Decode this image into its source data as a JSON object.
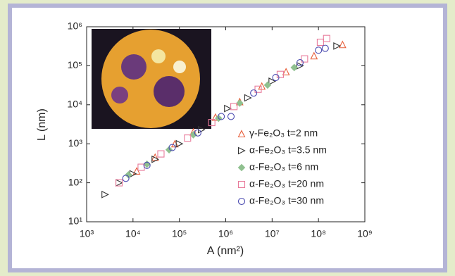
{
  "chart_data": {
    "type": "scatter",
    "xlabel": "A (nm²)",
    "ylabel": "L (nm)",
    "xscale": "log",
    "yscale": "log",
    "xlim": [
      1000,
      1000000000
    ],
    "ylim": [
      10,
      1000000
    ],
    "xticks": [
      {
        "value": 1000,
        "label": "10³"
      },
      {
        "value": 10000,
        "label": "10⁴"
      },
      {
        "value": 100000,
        "label": "10⁵"
      },
      {
        "value": 1000000,
        "label": "10⁶"
      },
      {
        "value": 10000000,
        "label": "10⁷"
      },
      {
        "value": 100000000,
        "label": "10⁸"
      },
      {
        "value": 1000000000,
        "label": "10⁹"
      }
    ],
    "yticks": [
      {
        "value": 10,
        "label": "10¹"
      },
      {
        "value": 100,
        "label": "10²"
      },
      {
        "value": 1000,
        "label": "10³"
      },
      {
        "value": 10000,
        "label": "10⁴"
      },
      {
        "value": 100000,
        "label": "10⁵"
      },
      {
        "value": 1000000,
        "label": "10⁶"
      }
    ],
    "legend": "right",
    "series": [
      {
        "name": "γ-Fe₂O₃ t=2 nm",
        "color": "#e8603c",
        "marker": "triangle-up",
        "x": [
          12000,
          30000,
          80000,
          200000,
          600000,
          2000000,
          6000000,
          20000000,
          80000000,
          330000000
        ],
        "values": [
          200,
          450,
          1000,
          2000,
          4800,
          12000,
          30000,
          70000,
          180000,
          350000
        ]
      },
      {
        "name": "α-Fe₂O₃ t=3.5 nm",
        "color": "#333333",
        "marker": "triangle-right",
        "x": [
          2500,
          5000,
          10000,
          30000,
          100000,
          300000,
          1100000,
          3000000,
          10000000,
          40000000,
          250000000
        ],
        "values": [
          50,
          100,
          170,
          400,
          1000,
          2300,
          8000,
          15000,
          40000,
          100000,
          320000
        ]
      },
      {
        "name": "α-Fe₂O₃ t=6 nm",
        "color": "#8fc08f",
        "marker": "diamond",
        "x": [
          8000,
          20000,
          60000,
          200000,
          700000,
          2000000,
          8000000,
          30000000
        ],
        "values": [
          160,
          300,
          700,
          1700,
          4500,
          11000,
          32000,
          90000
        ]
      },
      {
        "name": "α-Fe₂O₃ t=20 nm",
        "color": "#e87a9a",
        "marker": "square",
        "x": [
          5000,
          15000,
          40000,
          150000,
          500000,
          1500000,
          5000000,
          15000000,
          50000000,
          110000000,
          150000000
        ],
        "values": [
          100,
          250,
          550,
          1400,
          3500,
          9000,
          25000,
          60000,
          150000,
          400000,
          500000
        ]
      },
      {
        "name": "α-Fe₂O₃ t=30 nm",
        "color": "#4a4ab0",
        "marker": "circle",
        "x": [
          7000,
          20000,
          70000,
          250000,
          800000,
          1300000,
          4000000,
          12000000,
          40000000,
          100000000,
          140000000
        ],
        "values": [
          130,
          280,
          800,
          1900,
          5000,
          5000,
          20000,
          50000,
          120000,
          250000,
          280000
        ]
      }
    ]
  }
}
